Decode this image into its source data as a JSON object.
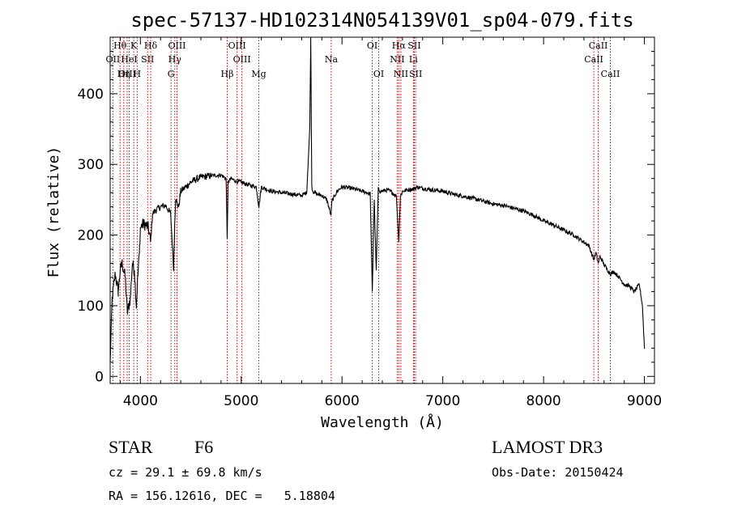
{
  "chart_data": {
    "type": "line",
    "title": "spec-57137-HD102314N054139V01_sp04-079.fits",
    "xlabel": "Wavelength (Å)",
    "ylabel": "Flux (relative)",
    "xlim": [
      3700,
      9100
    ],
    "ylim": [
      -10,
      480
    ],
    "xticks": [
      4000,
      5000,
      6000,
      7000,
      8000,
      9000
    ],
    "yticks": [
      0,
      100,
      200,
      300,
      400
    ],
    "grid": false,
    "series": [
      {
        "x": [
          3700,
          3720,
          3750,
          3780,
          3800,
          3820,
          3850,
          3870,
          3900,
          3920,
          3940,
          3960,
          3970,
          3990,
          4000,
          4020,
          4050,
          4080,
          4101,
          4120,
          4150,
          4200,
          4250,
          4300,
          4330,
          4340,
          4350,
          4380,
          4400,
          4450,
          4500,
          4600,
          4700,
          4800,
          4850,
          4861,
          4870,
          4900,
          4950,
          5000,
          5050,
          5100,
          5150,
          5175,
          5200,
          5300,
          5400,
          5500,
          5600,
          5650,
          5680,
          5690,
          5700,
          5710,
          5750,
          5800,
          5850,
          5890,
          5900,
          5950,
          6000,
          6100,
          6200,
          6250,
          6280,
          6300,
          6320,
          6340,
          6360,
          6380,
          6400,
          6450,
          6500,
          6540,
          6563,
          6580,
          6600,
          6650,
          6700,
          6750,
          6800,
          6900,
          7000,
          7100,
          7200,
          7300,
          7400,
          7500,
          7600,
          7700,
          7800,
          7900,
          8000,
          8100,
          8200,
          8300,
          8400,
          8450,
          8498,
          8520,
          8542,
          8560,
          8600,
          8662,
          8700,
          8750,
          8800,
          8850,
          8900,
          8950,
          8980,
          9000
        ],
        "y": [
          20,
          110,
          145,
          120,
          150,
          160,
          140,
          90,
          110,
          160,
          150,
          100,
          130,
          175,
          210,
          215,
          215,
          210,
          190,
          230,
          235,
          240,
          242,
          230,
          150,
          215,
          250,
          240,
          262,
          268,
          275,
          282,
          284,
          285,
          280,
          195,
          275,
          280,
          276,
          275,
          272,
          270,
          268,
          240,
          268,
          262,
          260,
          258,
          256,
          260,
          350,
          480,
          270,
          262,
          258,
          256,
          250,
          228,
          248,
          262,
          268,
          266,
          262,
          260,
          258,
          120,
          250,
          150,
          265,
          262,
          262,
          264,
          260,
          255,
          190,
          255,
          262,
          264,
          265,
          268,
          266,
          264,
          262,
          258,
          255,
          252,
          248,
          244,
          242,
          238,
          234,
          228,
          220,
          214,
          207,
          200,
          190,
          185,
          165,
          175,
          160,
          170,
          158,
          145,
          148,
          140,
          130,
          128,
          120,
          130,
          100,
          40
        ]
      }
    ],
    "line_labels": [
      {
        "text": "Hθ",
        "x": 3798,
        "row": 0
      },
      {
        "text": "K",
        "x": 3934,
        "row": 0
      },
      {
        "text": "Hδ",
        "x": 4102,
        "row": 0
      },
      {
        "text": "OIII",
        "x": 4363,
        "row": 0
      },
      {
        "text": "OIII",
        "x": 4959,
        "row": 0
      },
      {
        "text": "OI",
        "x": 6300,
        "row": 0
      },
      {
        "text": "Hα",
        "x": 6563,
        "row": 0
      },
      {
        "text": "SII",
        "x": 6717,
        "row": 0
      },
      {
        "text": "CaII",
        "x": 8542,
        "row": 0
      },
      {
        "text": "OII",
        "x": 3727,
        "row": 1
      },
      {
        "text": "HeI",
        "x": 3889,
        "row": 1
      },
      {
        "text": "SII",
        "x": 4072,
        "row": 1
      },
      {
        "text": "Hγ",
        "x": 4341,
        "row": 1
      },
      {
        "text": "OIII",
        "x": 5007,
        "row": 1
      },
      {
        "text": "Na",
        "x": 5893,
        "row": 1
      },
      {
        "text": "NII",
        "x": 6548,
        "row": 1
      },
      {
        "text": "Li",
        "x": 6708,
        "row": 1
      },
      {
        "text": "CaII",
        "x": 8498,
        "row": 1
      },
      {
        "text": "OIII",
        "x": 3869,
        "row": 2
      },
      {
        "text": "Hη",
        "x": 3835,
        "row": 2
      },
      {
        "text": "H",
        "x": 3968,
        "row": 2
      },
      {
        "text": "G",
        "x": 4304,
        "row": 2
      },
      {
        "text": "Hβ",
        "x": 4861,
        "row": 2
      },
      {
        "text": "Mg",
        "x": 5175,
        "row": 2
      },
      {
        "text": "OI",
        "x": 6364,
        "row": 2
      },
      {
        "text": "NII",
        "x": 6584,
        "row": 2
      },
      {
        "text": "SII",
        "x": 6731,
        "row": 2
      },
      {
        "text": "CaII",
        "x": 8662,
        "row": 2
      }
    ],
    "line_positions": [
      3727,
      3798,
      3835,
      3869,
      3889,
      3934,
      3968,
      4072,
      4102,
      4304,
      4341,
      4363,
      4861,
      4959,
      5007,
      5175,
      5893,
      6300,
      6364,
      6548,
      6563,
      6584,
      6708,
      6717,
      6731,
      8498,
      8542,
      8662
    ]
  },
  "info": {
    "object_class": "STAR",
    "subclass": "F6",
    "cz": "cz = 29.1 ± 69.8 km/s",
    "coords": "RA = 156.12616, DEC =   5.18804",
    "survey": "LAMOST DR3",
    "obs_date": "Obs-Date: 20150424"
  },
  "colors": {
    "spectrum": "#000000",
    "line_marker": "#cc0000",
    "axes": "#000000"
  }
}
